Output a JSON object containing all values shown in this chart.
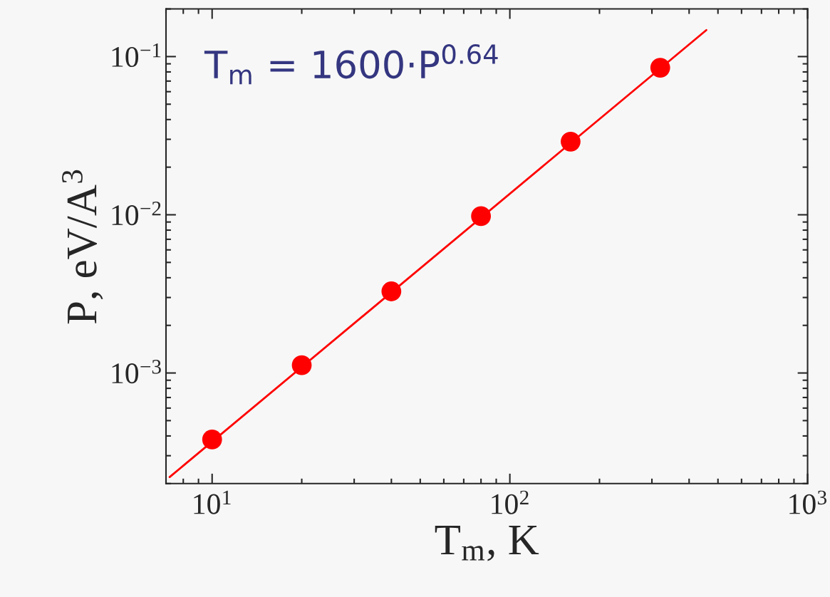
{
  "chart_data": {
    "type": "scatter",
    "xlabel": "T$_{m}$, K",
    "ylabel": "P, eV/A$^{3}$",
    "log": "xy",
    "grid": false,
    "legend": false,
    "xlim": [
      7,
      1000
    ],
    "ylim": [
      0.0002,
      0.2
    ],
    "xticks": [
      {
        "value": 10,
        "label": "10$^{1}$"
      },
      {
        "value": 100,
        "label": "10$^{2}$"
      },
      {
        "value": 1000,
        "label": "10$^{3}$"
      }
    ],
    "yticks": [
      {
        "value": 0.001,
        "label": "10$^{−3}$"
      },
      {
        "value": 0.01,
        "label": "10$^{−2}$"
      },
      {
        "value": 0.1,
        "label": "10$^{−1}$"
      }
    ],
    "annotations": [
      "T$_{m}$ = 1600·P$^{0.64}$"
    ],
    "series": [
      {
        "color": "#ff0000",
        "marker": "circle",
        "x": [
          10,
          20,
          40,
          80,
          160,
          320
        ],
        "values": [
          0.00038,
          0.00112,
          0.00328,
          0.0098,
          0.029,
          0.085
        ]
      },
      {
        "type": "line",
        "color": "#ff0000",
        "marker": "none",
        "line_style": "solid",
        "x": [
          7.2,
          457
        ],
        "values": [
          0.00022,
          0.147
        ]
      }
    ]
  }
}
